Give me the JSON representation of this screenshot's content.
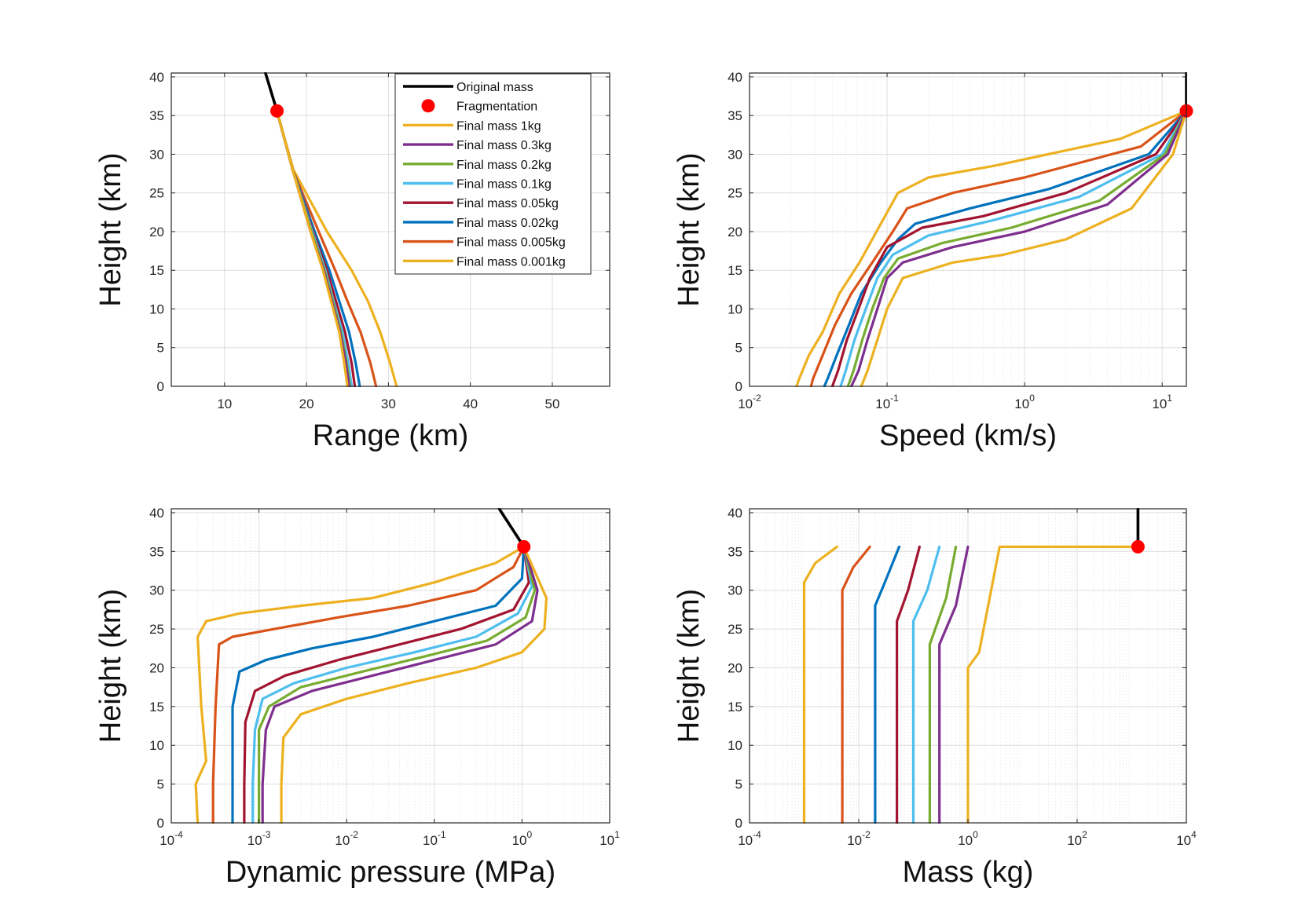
{
  "chart_data": [
    {
      "type": "line",
      "id": "range",
      "xlabel": "Range (km)",
      "ylabel": "Height (km)",
      "xscale": "linear",
      "xlim": [
        3.5,
        57
      ],
      "ylim": [
        0,
        40.5
      ],
      "xticks": [
        10,
        20,
        30,
        40,
        50
      ],
      "xticklabels": [
        "10",
        "20",
        "30",
        "40",
        "50"
      ],
      "yticks": [
        0,
        5,
        10,
        15,
        20,
        25,
        30,
        35,
        40
      ],
      "yticklabels": [
        "0",
        "5",
        "10",
        "15",
        "20",
        "25",
        "30",
        "35",
        "40"
      ],
      "grid": true,
      "legend": "top-right",
      "original": {
        "name": "Original mass",
        "color": "#000000",
        "x": [
          15.0,
          16.4
        ],
        "y": [
          40.5,
          35.6
        ]
      },
      "fragmentation": {
        "name": "Fragmentation",
        "color": "#ff0000",
        "x": 16.4,
        "y": 35.6
      },
      "series": [
        {
          "name": "Final mass 1kg",
          "color": "#EDB120",
          "x": [
            16.4,
            18.3,
            20.5,
            22.0,
            23.0,
            24.0,
            24.6,
            25.0
          ],
          "y": [
            35.6,
            28.0,
            20.0,
            15.0,
            11.0,
            7.0,
            3.0,
            0.0
          ]
        },
        {
          "name": "Final mass 0.3kg",
          "color": "#7E2F8E",
          "x": [
            16.4,
            18.3,
            20.5,
            22.1,
            23.1,
            24.1,
            24.8,
            25.2
          ],
          "y": [
            35.6,
            28.0,
            20.0,
            15.0,
            11.0,
            7.0,
            3.0,
            0.0
          ]
        },
        {
          "name": "Final mass 0.2kg",
          "color": "#77AC30",
          "x": [
            16.4,
            18.3,
            20.6,
            22.2,
            23.2,
            24.2,
            24.9,
            25.3
          ],
          "y": [
            35.6,
            28.0,
            20.0,
            15.0,
            11.0,
            7.0,
            3.0,
            0.0
          ]
        },
        {
          "name": "Final mass 0.1kg",
          "color": "#4DBEEE",
          "x": [
            16.4,
            18.3,
            20.7,
            22.3,
            23.3,
            24.4,
            25.1,
            25.5
          ],
          "y": [
            35.6,
            28.0,
            20.0,
            15.0,
            11.0,
            7.0,
            3.0,
            0.0
          ]
        },
        {
          "name": "Final mass 0.05kg",
          "color": "#A2142F",
          "x": [
            16.4,
            18.3,
            20.8,
            22.5,
            23.6,
            24.7,
            25.5,
            25.9
          ],
          "y": [
            35.6,
            28.0,
            20.0,
            15.0,
            11.0,
            7.0,
            3.0,
            0.0
          ]
        },
        {
          "name": "Final mass 0.02kg",
          "color": "#0072BD",
          "x": [
            16.4,
            18.3,
            21.0,
            22.8,
            24.0,
            25.2,
            26.0,
            26.5
          ],
          "y": [
            35.6,
            28.0,
            20.0,
            15.0,
            11.0,
            7.0,
            3.0,
            0.0
          ]
        },
        {
          "name": "Final mass 0.005kg",
          "color": "#D95319",
          "x": [
            16.4,
            18.3,
            21.5,
            23.5,
            25.0,
            26.6,
            27.8,
            28.5
          ],
          "y": [
            35.6,
            28.0,
            20.0,
            15.0,
            11.0,
            7.0,
            3.0,
            0.0
          ]
        },
        {
          "name": "Final mass 0.001kg",
          "color": "#EDB120",
          "x": [
            16.4,
            18.4,
            22.5,
            25.5,
            27.5,
            29.0,
            30.2,
            31.0
          ],
          "y": [
            35.6,
            28.0,
            20.0,
            15.0,
            11.0,
            7.0,
            3.0,
            0.0
          ]
        }
      ]
    },
    {
      "type": "line",
      "id": "speed",
      "xlabel": "Speed (km/s)",
      "ylabel": "Height (km)",
      "xscale": "log",
      "xlim": [
        0.01,
        15
      ],
      "ylim": [
        0,
        40.5
      ],
      "xticks": [
        0.01,
        0.1,
        1,
        10
      ],
      "xticklabels": [
        [
          "10",
          "-2"
        ],
        [
          "10",
          "-1"
        ],
        [
          "10",
          "0"
        ],
        [
          "10",
          "1"
        ]
      ],
      "yticks": [
        0,
        5,
        10,
        15,
        20,
        25,
        30,
        35,
        40
      ],
      "yticklabels": [
        "0",
        "5",
        "10",
        "15",
        "20",
        "25",
        "30",
        "35",
        "40"
      ],
      "grid": true,
      "original": {
        "color": "#000000",
        "x": [
          15.0,
          15.0
        ],
        "y": [
          40.5,
          35.6
        ]
      },
      "fragmentation": {
        "color": "#ff0000",
        "x": 15.0,
        "y": 35.6
      },
      "series": [
        {
          "name": "Final mass 1kg",
          "color": "#EDB120",
          "x": [
            15.0,
            12.0,
            6.0,
            2.0,
            0.7,
            0.3,
            0.13,
            0.1,
            0.085,
            0.072,
            0.065
          ],
          "y": [
            35.6,
            30.0,
            23.0,
            19.0,
            17.0,
            16.0,
            14.0,
            10.0,
            6.0,
            2.0,
            0.0
          ]
        },
        {
          "name": "Final mass 0.3kg",
          "color": "#7E2F8E",
          "x": [
            15.0,
            11.0,
            4.0,
            1.0,
            0.3,
            0.13,
            0.1,
            0.085,
            0.072,
            0.062,
            0.055
          ],
          "y": [
            35.6,
            30.0,
            23.5,
            20.0,
            18.0,
            16.0,
            14.0,
            10.0,
            6.0,
            2.0,
            0.0
          ]
        },
        {
          "name": "Final mass 0.2kg",
          "color": "#77AC30",
          "x": [
            15.0,
            10.5,
            3.5,
            0.8,
            0.25,
            0.12,
            0.095,
            0.078,
            0.066,
            0.057,
            0.052
          ],
          "y": [
            35.6,
            30.0,
            24.0,
            20.5,
            18.5,
            16.5,
            14.0,
            10.0,
            6.0,
            2.0,
            0.0
          ]
        },
        {
          "name": "Final mass 0.1kg",
          "color": "#4DBEEE",
          "x": [
            15.0,
            10.0,
            2.5,
            0.6,
            0.2,
            0.11,
            0.085,
            0.07,
            0.058,
            0.05,
            0.046
          ],
          "y": [
            35.6,
            30.0,
            24.5,
            21.5,
            19.5,
            17.0,
            14.0,
            10.0,
            6.0,
            2.0,
            0.0
          ]
        },
        {
          "name": "Final mass 0.05kg",
          "color": "#A2142F",
          "x": [
            15.0,
            9.0,
            2.0,
            0.5,
            0.18,
            0.1,
            0.075,
            0.062,
            0.051,
            0.044,
            0.04
          ],
          "y": [
            35.6,
            30.0,
            25.0,
            22.0,
            20.5,
            18.0,
            14.0,
            10.0,
            6.0,
            2.0,
            0.0
          ]
        },
        {
          "name": "Final mass 0.02kg",
          "color": "#0072BD",
          "x": [
            15.0,
            8.0,
            1.5,
            0.4,
            0.16,
            0.12,
            0.09,
            0.065,
            0.053,
            0.043,
            0.037,
            0.035
          ],
          "y": [
            35.6,
            30.0,
            25.5,
            23.0,
            21.0,
            19.0,
            16.0,
            12.0,
            8.0,
            4.0,
            1.0,
            0.0
          ]
        },
        {
          "name": "Final mass 0.005kg",
          "color": "#D95319",
          "x": [
            15.0,
            7.0,
            1.0,
            0.3,
            0.14,
            0.11,
            0.078,
            0.055,
            0.042,
            0.034,
            0.029,
            0.028
          ],
          "y": [
            35.6,
            31.0,
            27.0,
            25.0,
            23.0,
            20.0,
            16.0,
            12.0,
            8.0,
            4.0,
            1.0,
            0.0
          ]
        },
        {
          "name": "Final mass 0.001kg",
          "color": "#EDB120",
          "x": [
            15.0,
            5.0,
            0.6,
            0.2,
            0.12,
            0.09,
            0.063,
            0.045,
            0.034,
            0.027,
            0.023,
            0.022
          ],
          "y": [
            35.6,
            32.0,
            28.5,
            27.0,
            25.0,
            21.0,
            16.0,
            12.0,
            7.0,
            4.0,
            1.0,
            0.0
          ]
        }
      ]
    },
    {
      "type": "line",
      "id": "pressure",
      "xlabel": "Dynamic pressure (MPa)",
      "ylabel": "Height (km)",
      "xscale": "log",
      "xlim": [
        0.0001,
        10
      ],
      "ylim": [
        0,
        40.5
      ],
      "xticks": [
        0.0001,
        0.001,
        0.01,
        0.1,
        1,
        10
      ],
      "xticklabels": [
        [
          "10",
          "-4"
        ],
        [
          "10",
          "-3"
        ],
        [
          "10",
          "-2"
        ],
        [
          "10",
          "-1"
        ],
        [
          "10",
          "0"
        ],
        [
          "10",
          "1"
        ]
      ],
      "yticks": [
        0,
        5,
        10,
        15,
        20,
        25,
        30,
        35,
        40
      ],
      "yticklabels": [
        "0",
        "5",
        "10",
        "15",
        "20",
        "25",
        "30",
        "35",
        "40"
      ],
      "grid": true,
      "original": {
        "color": "#000000",
        "x": [
          0.55,
          1.05
        ],
        "y": [
          40.5,
          35.6
        ]
      },
      "fragmentation": {
        "color": "#ff0000",
        "x": 1.05,
        "y": 35.6
      },
      "series": [
        {
          "name": "Final mass 1kg",
          "color": "#EDB120",
          "x": [
            1.05,
            1.9,
            1.8,
            1.0,
            0.3,
            0.05,
            0.01,
            0.003,
            0.0019,
            0.0018,
            0.0018
          ],
          "y": [
            35.6,
            29.0,
            25.0,
            22.0,
            20.0,
            18.0,
            16.0,
            14.0,
            11.0,
            5.0,
            0.0
          ]
        },
        {
          "name": "Final mass 0.3kg",
          "color": "#7E2F8E",
          "x": [
            1.05,
            1.5,
            1.3,
            0.5,
            0.1,
            0.02,
            0.004,
            0.0015,
            0.0012,
            0.0011,
            0.0011
          ],
          "y": [
            35.6,
            30.0,
            26.0,
            23.0,
            21.0,
            19.0,
            17.0,
            15.0,
            12.0,
            5.0,
            0.0
          ]
        },
        {
          "name": "Final mass 0.2kg",
          "color": "#77AC30",
          "x": [
            1.05,
            1.4,
            1.1,
            0.4,
            0.08,
            0.015,
            0.003,
            0.0013,
            0.001,
            0.001,
            0.001
          ],
          "y": [
            35.6,
            30.0,
            26.5,
            23.5,
            21.5,
            19.5,
            17.5,
            15.0,
            12.0,
            5.0,
            0.0
          ]
        },
        {
          "name": "Final mass 0.1kg",
          "color": "#4DBEEE",
          "x": [
            1.05,
            1.3,
            0.9,
            0.3,
            0.06,
            0.01,
            0.0025,
            0.0011,
            0.0009,
            0.00085,
            0.00085
          ],
          "y": [
            35.6,
            30.5,
            27.0,
            24.0,
            22.0,
            20.0,
            18.0,
            16.0,
            12.0,
            5.0,
            0.0
          ]
        },
        {
          "name": "Final mass 0.05kg",
          "color": "#A2142F",
          "x": [
            1.05,
            1.2,
            0.8,
            0.2,
            0.04,
            0.008,
            0.002,
            0.0009,
            0.0007,
            0.00068,
            0.00068
          ],
          "y": [
            35.6,
            31.0,
            27.5,
            25.0,
            23.0,
            21.0,
            19.0,
            17.0,
            13.0,
            5.0,
            0.0
          ]
        },
        {
          "name": "Final mass 0.02kg",
          "color": "#0072BD",
          "x": [
            1.05,
            1.0,
            0.5,
            0.1,
            0.02,
            0.004,
            0.0012,
            0.0006,
            0.0005,
            0.0005,
            0.0005
          ],
          "y": [
            35.6,
            31.5,
            28.0,
            26.0,
            24.0,
            22.5,
            21.0,
            19.5,
            15.0,
            5.0,
            0.0
          ]
        },
        {
          "name": "Final mass 0.005kg",
          "color": "#D95319",
          "x": [
            1.05,
            0.8,
            0.3,
            0.05,
            0.008,
            0.0015,
            0.0005,
            0.00035,
            0.00032,
            0.0003,
            0.0003
          ],
          "y": [
            35.6,
            33.0,
            30.0,
            28.0,
            26.5,
            25.0,
            24.0,
            23.0,
            15.0,
            5.0,
            0.0
          ]
        },
        {
          "name": "Final mass 0.001kg",
          "color": "#EDB120",
          "x": [
            1.05,
            0.5,
            0.1,
            0.02,
            0.003,
            0.0006,
            0.00025,
            0.0002,
            0.00022,
            0.00025,
            0.00019,
            0.0002
          ],
          "y": [
            35.6,
            33.5,
            31.0,
            29.0,
            28.0,
            27.0,
            26.0,
            24.0,
            15.0,
            8.0,
            5.0,
            0.0
          ]
        }
      ]
    },
    {
      "type": "line",
      "id": "mass",
      "xlabel": "Mass (kg)",
      "ylabel": "Height (km)",
      "xscale": "log",
      "xlim": [
        0.0001,
        10000
      ],
      "ylim": [
        0,
        40.5
      ],
      "xticks": [
        0.0001,
        0.01,
        1,
        100,
        10000
      ],
      "xticklabels": [
        [
          "10",
          "-4"
        ],
        [
          "10",
          "-2"
        ],
        [
          "10",
          "0"
        ],
        [
          "10",
          "2"
        ],
        [
          "10",
          "4"
        ]
      ],
      "yticks": [
        0,
        5,
        10,
        15,
        20,
        25,
        30,
        35,
        40
      ],
      "yticklabels": [
        "0",
        "5",
        "10",
        "15",
        "20",
        "25",
        "30",
        "35",
        "40"
      ],
      "grid": true,
      "original": {
        "color": "#000000",
        "x": [
          1300,
          1300
        ],
        "y": [
          40.5,
          35.6
        ]
      },
      "fragmentation": {
        "color": "#ff0000",
        "x": 1300,
        "y": 35.6
      },
      "series": [
        {
          "name": "Final mass 1kg",
          "color": "#EDB120",
          "x": [
            1300,
            3.8,
            1.6,
            1.0,
            1.0
          ],
          "y": [
            35.6,
            35.6,
            22.0,
            20.0,
            0.0
          ]
        },
        {
          "name": "Final mass 0.3kg",
          "color": "#7E2F8E",
          "x": [
            1.0,
            0.6,
            0.3,
            0.3
          ],
          "y": [
            35.6,
            28.0,
            23.0,
            0.0
          ]
        },
        {
          "name": "Final mass 0.2kg",
          "color": "#77AC30",
          "x": [
            0.6,
            0.4,
            0.2,
            0.2
          ],
          "y": [
            35.6,
            29.0,
            23.0,
            0.0
          ]
        },
        {
          "name": "Final mass 0.1kg",
          "color": "#4DBEEE",
          "x": [
            0.3,
            0.18,
            0.1,
            0.1
          ],
          "y": [
            35.6,
            30.0,
            26.0,
            0.0
          ]
        },
        {
          "name": "Final mass 0.05kg",
          "color": "#A2142F",
          "x": [
            0.13,
            0.08,
            0.05,
            0.05
          ],
          "y": [
            35.6,
            30.0,
            26.0,
            0.0
          ]
        },
        {
          "name": "Final mass 0.02kg",
          "color": "#0072BD",
          "x": [
            0.055,
            0.03,
            0.02,
            0.02
          ],
          "y": [
            35.6,
            31.0,
            28.0,
            0.0
          ]
        },
        {
          "name": "Final mass 0.005kg",
          "color": "#D95319",
          "x": [
            0.016,
            0.008,
            0.005,
            0.005
          ],
          "y": [
            35.6,
            33.0,
            30.0,
            0.0
          ]
        },
        {
          "name": "Final mass 0.001kg",
          "color": "#EDB120",
          "x": [
            0.004,
            0.0016,
            0.001,
            0.001
          ],
          "y": [
            35.6,
            33.5,
            31.0,
            0.0
          ]
        }
      ]
    }
  ]
}
